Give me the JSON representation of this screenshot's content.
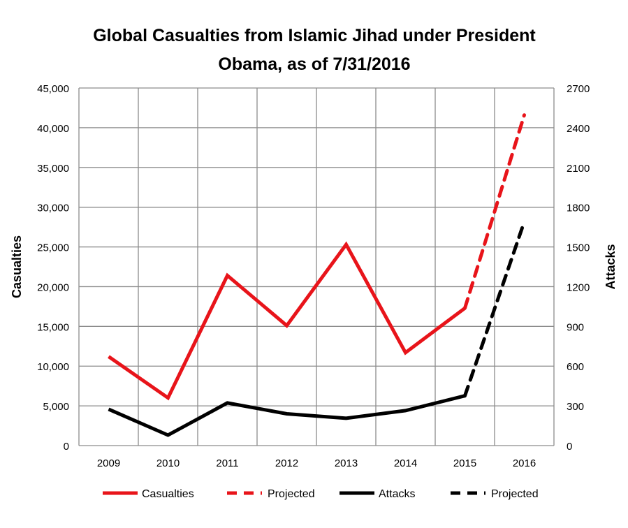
{
  "chart_data": {
    "type": "line",
    "title_lines": [
      "Global Casualties from Islamic Jihad under President",
      "Obama, as of 7/31/2016"
    ],
    "categories": [
      "2009",
      "2010",
      "2011",
      "2012",
      "2013",
      "2014",
      "2015",
      "2016"
    ],
    "ylabel": "Casualties",
    "y2label": "Attacks",
    "ylim": [
      0,
      45000
    ],
    "y2lim": [
      0,
      2700
    ],
    "yticks": [
      "0",
      "5,000",
      "10,000",
      "15,000",
      "20,000",
      "25,000",
      "30,000",
      "35,000",
      "40,000",
      "45,000"
    ],
    "ytick_values": [
      0,
      5000,
      10000,
      15000,
      20000,
      25000,
      30000,
      35000,
      40000,
      45000
    ],
    "y2ticks": [
      "0",
      "300",
      "600",
      "900",
      "1200",
      "1500",
      "1800",
      "2100",
      "2400",
      "2700"
    ],
    "y2tick_values": [
      0,
      300,
      600,
      900,
      1200,
      1500,
      1800,
      2100,
      2400,
      2700
    ],
    "grid": true,
    "legend_position": "bottom",
    "series": [
      {
        "name": "Casualties",
        "axis": "left",
        "style": "solid",
        "color": "#e8141a",
        "values": [
          11200,
          6000,
          21400,
          15100,
          25300,
          11700,
          17300,
          null
        ]
      },
      {
        "name": "Projected",
        "axis": "left",
        "style": "dashed",
        "color": "#e8141a",
        "values": [
          null,
          null,
          null,
          null,
          null,
          null,
          17300,
          41600
        ]
      },
      {
        "name": "Attacks",
        "axis": "right",
        "style": "solid",
        "color": "#000000",
        "values": [
          275,
          79,
          322,
          240,
          206,
          264,
          376,
          null
        ]
      },
      {
        "name": "Projected",
        "axis": "right",
        "style": "dashed",
        "color": "#000000",
        "values": [
          null,
          null,
          null,
          null,
          null,
          null,
          376,
          1690
        ]
      }
    ]
  }
}
